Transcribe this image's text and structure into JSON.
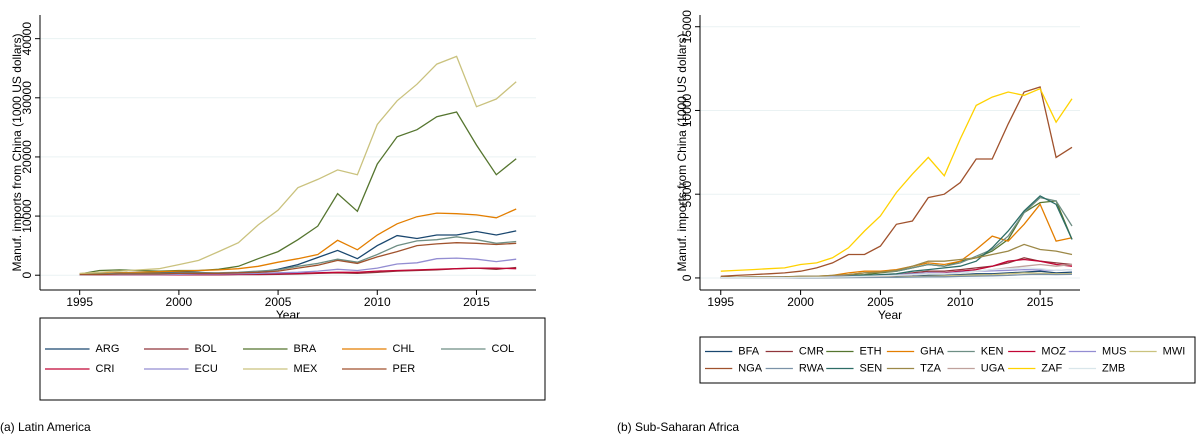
{
  "chart_data": [
    {
      "type": "line",
      "caption": "(a) Latin America",
      "xlabel": "Year",
      "ylabel": "Manuf. imports from China (1000 US dollars)",
      "x": [
        1995,
        1996,
        1997,
        1998,
        1999,
        2000,
        2001,
        2002,
        2003,
        2004,
        2005,
        2006,
        2007,
        2008,
        2009,
        2010,
        2011,
        2012,
        2013,
        2014,
        2015,
        2016,
        2017
      ],
      "xlim": [
        1993,
        2018
      ],
      "xticks": [
        1995,
        2000,
        2005,
        2010,
        2015
      ],
      "ylim": [
        -2500,
        44000
      ],
      "yticks": [
        0,
        10000,
        20000,
        30000,
        40000
      ],
      "grid": true,
      "legend": "bottom",
      "series": [
        {
          "name": "ARG",
          "color": "#1a476f",
          "values": [
            200,
            300,
            400,
            500,
            400,
            600,
            500,
            300,
            300,
            500,
            1000,
            1800,
            3000,
            4200,
            2800,
            5000,
            6700,
            6200,
            6800,
            6800,
            7400,
            6800,
            7500
          ]
        },
        {
          "name": "BOL",
          "color": "#90353b",
          "values": [
            50,
            50,
            50,
            50,
            50,
            50,
            50,
            50,
            100,
            100,
            150,
            200,
            300,
            400,
            300,
            500,
            700,
            800,
            900,
            1100,
            1200,
            1000,
            1300
          ]
        },
        {
          "name": "BRA",
          "color": "#55752f",
          "values": [
            200,
            800,
            900,
            800,
            700,
            800,
            800,
            1000,
            1500,
            2800,
            4000,
            6000,
            8300,
            13800,
            10800,
            18800,
            23400,
            24600,
            26800,
            27600,
            22000,
            17000,
            19700
          ]
        },
        {
          "name": "CHL",
          "color": "#e37e00",
          "values": [
            200,
            300,
            400,
            500,
            600,
            700,
            800,
            900,
            1100,
            1500,
            2200,
            2800,
            3500,
            5900,
            4300,
            6800,
            8700,
            9900,
            10500,
            10400,
            10200,
            9700,
            11200
          ]
        },
        {
          "name": "COL",
          "color": "#6e8e84",
          "values": [
            100,
            200,
            300,
            300,
            300,
            400,
            400,
            400,
            500,
            700,
            900,
            1500,
            2000,
            2700,
            2200,
            3500,
            5000,
            5800,
            6000,
            6500,
            6000,
            5400,
            5700
          ]
        },
        {
          "name": "CRI",
          "color": "#c10534",
          "values": [
            50,
            50,
            50,
            50,
            50,
            50,
            100,
            100,
            150,
            200,
            250,
            300,
            400,
            500,
            500,
            700,
            800,
            900,
            1000,
            1100,
            1200,
            1200,
            1100
          ]
        },
        {
          "name": "ECU",
          "color": "#938dd2",
          "values": [
            50,
            100,
            100,
            100,
            100,
            150,
            200,
            200,
            250,
            300,
            400,
            500,
            700,
            1000,
            800,
            1200,
            1900,
            2100,
            2800,
            2900,
            2700,
            2300,
            2700
          ]
        },
        {
          "name": "MEX",
          "color": "#cac27e",
          "values": [
            300,
            500,
            700,
            900,
            1100,
            1800,
            2500,
            4000,
            5500,
            8500,
            11000,
            14800,
            16200,
            17800,
            17000,
            25500,
            29500,
            32300,
            35700,
            37000,
            28500,
            29800,
            32700
          ]
        },
        {
          "name": "PER",
          "color": "#a0522d",
          "values": [
            100,
            100,
            200,
            200,
            200,
            300,
            300,
            300,
            400,
            500,
            700,
            1200,
            1700,
            2500,
            2000,
            3100,
            4000,
            5000,
            5300,
            5500,
            5400,
            5200,
            5400
          ]
        }
      ]
    },
    {
      "type": "line",
      "caption": "(b) Sub-Saharan Africa",
      "xlabel": "Year",
      "ylabel": "Manuf. imports from China (1000 US dollars)",
      "x": [
        1995,
        1996,
        1997,
        1998,
        1999,
        2000,
        2001,
        2002,
        2003,
        2004,
        2005,
        2006,
        2007,
        2008,
        2009,
        2010,
        2011,
        2012,
        2013,
        2014,
        2015,
        2016,
        2017
      ],
      "xlim": [
        1993.7,
        2017.5
      ],
      "xticks": [
        1995,
        2000,
        2005,
        2010,
        2015
      ],
      "ylim": [
        -720,
        15700
      ],
      "yticks": [
        0,
        5000,
        10000,
        15000
      ],
      "grid": true,
      "legend": "bottom",
      "series": [
        {
          "name": "BFA",
          "color": "#1a476f",
          "values": [
            10,
            10,
            10,
            10,
            10,
            20,
            20,
            30,
            40,
            50,
            60,
            80,
            100,
            150,
            150,
            200,
            250,
            250,
            300,
            350,
            400,
            300,
            350
          ]
        },
        {
          "name": "CMR",
          "color": "#90353b",
          "values": [
            30,
            30,
            30,
            30,
            30,
            50,
            50,
            60,
            80,
            100,
            150,
            200,
            300,
            400,
            400,
            500,
            600,
            700,
            900,
            1200,
            1000,
            900,
            800
          ]
        },
        {
          "name": "ETH",
          "color": "#55752f",
          "values": [
            30,
            30,
            30,
            30,
            30,
            50,
            50,
            100,
            150,
            200,
            300,
            400,
            600,
            800,
            700,
            1000,
            1200,
            1600,
            2300,
            3900,
            4500,
            4600,
            2300
          ]
        },
        {
          "name": "GHA",
          "color": "#e37e00",
          "values": [
            50,
            50,
            50,
            50,
            50,
            80,
            100,
            150,
            300,
            400,
            400,
            500,
            700,
            900,
            800,
            1000,
            1700,
            2500,
            2200,
            3200,
            4400,
            2200,
            2400
          ]
        },
        {
          "name": "KEN",
          "color": "#6e8e84",
          "values": [
            50,
            50,
            50,
            50,
            50,
            100,
            100,
            100,
            200,
            300,
            350,
            400,
            600,
            800,
            700,
            900,
            1300,
            1700,
            2500,
            3900,
            4800,
            4600,
            3100
          ]
        },
        {
          "name": "MOZ",
          "color": "#c10534",
          "values": [
            20,
            20,
            20,
            20,
            20,
            30,
            40,
            50,
            60,
            80,
            100,
            150,
            200,
            300,
            300,
            400,
            500,
            700,
            1000,
            1100,
            1000,
            800,
            700
          ]
        },
        {
          "name": "MUS",
          "color": "#938dd2",
          "values": [
            50,
            50,
            60,
            60,
            70,
            80,
            90,
            100,
            120,
            150,
            180,
            200,
            250,
            300,
            280,
            350,
            400,
            420,
            450,
            500,
            480,
            450,
            500
          ]
        },
        {
          "name": "MWI",
          "color": "#cac27e",
          "values": [
            10,
            10,
            10,
            10,
            10,
            15,
            20,
            20,
            30,
            40,
            50,
            60,
            80,
            100,
            120,
            150,
            180,
            200,
            250,
            300,
            280,
            250,
            260
          ]
        },
        {
          "name": "NGA",
          "color": "#a0522d",
          "values": [
            100,
            150,
            200,
            250,
            300,
            400,
            600,
            900,
            1400,
            1400,
            1900,
            3200,
            3400,
            4800,
            5000,
            5700,
            7100,
            7100,
            9200,
            11100,
            11400,
            7200,
            7800
          ]
        },
        {
          "name": "RWA",
          "color": "#7b92a8",
          "values": [
            5,
            5,
            5,
            5,
            5,
            10,
            10,
            15,
            20,
            25,
            30,
            40,
            50,
            60,
            70,
            90,
            110,
            130,
            150,
            200,
            220,
            200,
            210
          ]
        },
        {
          "name": "SEN",
          "color": "#2d6d66",
          "values": [
            30,
            30,
            30,
            30,
            30,
            50,
            50,
            50,
            100,
            150,
            200,
            250,
            400,
            500,
            600,
            700,
            1000,
            1800,
            2800,
            4000,
            4900,
            4400,
            2300
          ]
        },
        {
          "name": "TZA",
          "color": "#9c8847",
          "values": [
            50,
            50,
            60,
            60,
            70,
            100,
            100,
            150,
            200,
            300,
            350,
            450,
            700,
            1000,
            1000,
            1100,
            1200,
            1400,
            1600,
            2000,
            1700,
            1600,
            1400
          ]
        },
        {
          "name": "UGA",
          "color": "#bfa19c",
          "values": [
            20,
            20,
            20,
            20,
            20,
            30,
            40,
            50,
            60,
            80,
            100,
            150,
            200,
            250,
            250,
            300,
            400,
            500,
            600,
            700,
            800,
            700,
            800
          ]
        },
        {
          "name": "ZAF",
          "color": "#ffd200",
          "values": [
            400,
            450,
            500,
            550,
            600,
            800,
            900,
            1200,
            1800,
            2800,
            3700,
            5100,
            6200,
            7200,
            6100,
            8300,
            10300,
            10800,
            11100,
            10900,
            11300,
            9300,
            10700
          ]
        },
        {
          "name": "ZMB",
          "color": "#d9e6eb",
          "values": [
            20,
            20,
            20,
            20,
            20,
            30,
            40,
            50,
            70,
            100,
            120,
            150,
            200,
            250,
            250,
            300,
            400,
            500,
            550,
            600,
            550,
            450,
            500
          ]
        }
      ]
    }
  ]
}
